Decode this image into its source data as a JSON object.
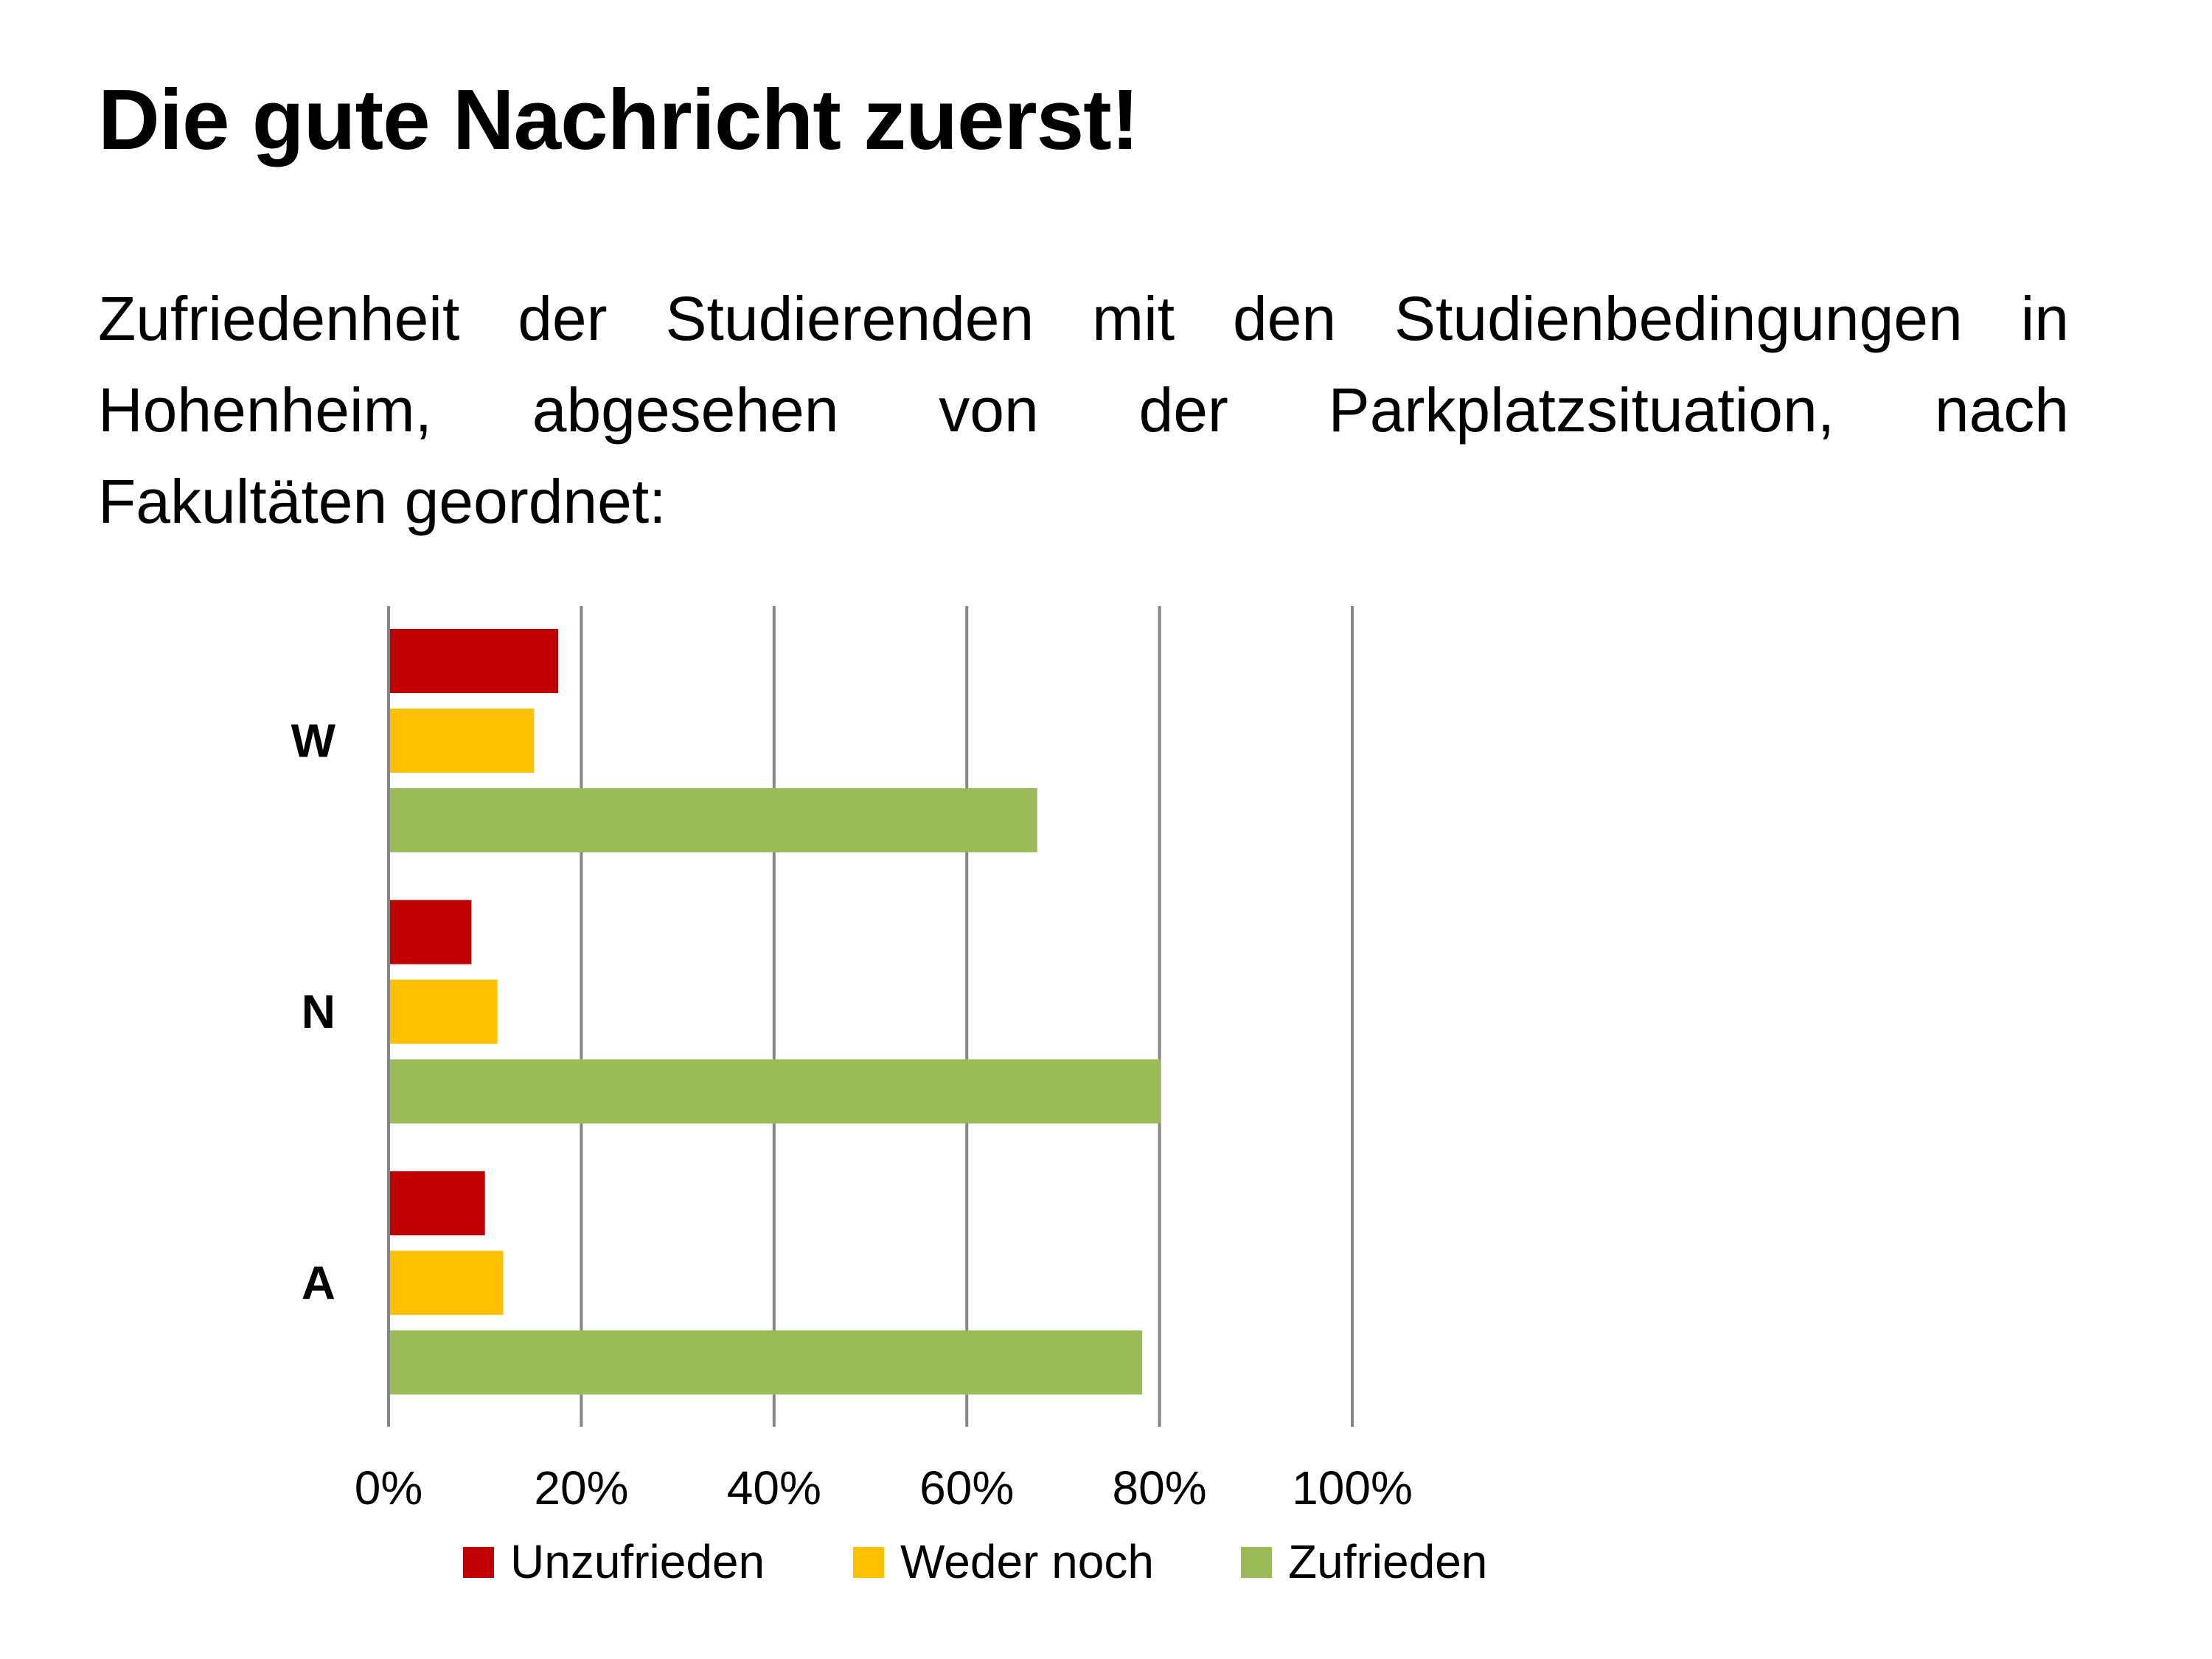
{
  "title": "Die gute Nachricht zuerst!",
  "subtitle_lines": [
    "Zufriedenheit der Studierenden mit den Studienbedingungen in",
    "Hohenheim, abgesehen von der Parkplatzsituation, nach",
    "Fakultäten geordnet:"
  ],
  "chart_data": {
    "type": "bar",
    "orientation": "horizontal",
    "categories": [
      "W",
      "N",
      "A"
    ],
    "series": [
      {
        "name": "Unzufrieden",
        "color": "#C00000",
        "values": [
          17.6,
          8.6,
          10.0
        ]
      },
      {
        "name": "Weder noch",
        "color": "#FFC000",
        "values": [
          15.1,
          11.3,
          11.9
        ]
      },
      {
        "name": "Zufrieden",
        "color": "#9BBB59",
        "values": [
          67.3,
          80.1,
          78.2
        ]
      }
    ],
    "xlim": [
      0,
      100
    ],
    "xticks": [
      "0%",
      "20%",
      "40%",
      "60%",
      "80%",
      "100%"
    ],
    "grid": "vertical",
    "legend": "bottom",
    "title": "",
    "xlabel": "",
    "ylabel": ""
  }
}
